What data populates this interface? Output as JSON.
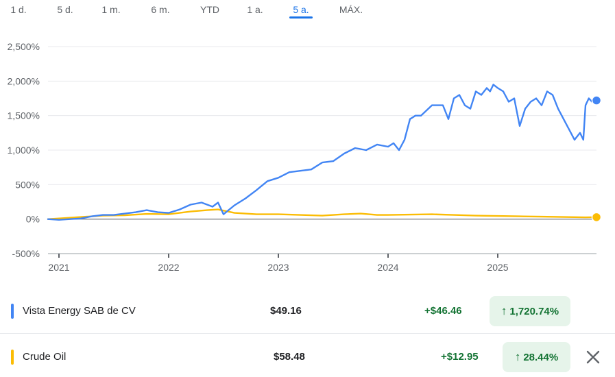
{
  "ranges": [
    "1 d.",
    "5 d.",
    "1 m.",
    "6 m.",
    "YTD",
    "1 a.",
    "5 a.",
    "MÁX."
  ],
  "active_range": "5 a.",
  "legend": [
    {
      "name": "Vista Energy SAB de CV",
      "price": "$49.16",
      "change": "+$46.46",
      "percent": "1,720.74%",
      "color": "#4285f4"
    },
    {
      "name": "Crude Oil",
      "price": "$58.48",
      "change": "+$12.95",
      "percent": "28.44%",
      "color": "#fbbc04"
    }
  ],
  "icons": {
    "up": "arrow-up-icon",
    "close": "close-icon"
  },
  "chart_data": {
    "type": "line",
    "ylabel_format": "percent",
    "y_ticks": [
      "2,500%",
      "2,000%",
      "1,500%",
      "1,000%",
      "500%",
      "0%",
      "-500%"
    ],
    "y_tick_values": [
      2500,
      2000,
      1500,
      1000,
      500,
      0,
      -500
    ],
    "ylim": [
      -500,
      2500
    ],
    "x_ticks": [
      "2021",
      "2022",
      "2023",
      "2024",
      "2025"
    ],
    "x_tick_values": [
      2021.0,
      2022.0,
      2023.0,
      2024.0,
      2025.0
    ],
    "xlim": [
      2020.9,
      2025.9
    ],
    "grid": true,
    "series": [
      {
        "name": "Vista Energy SAB de CV",
        "color": "#4285f4",
        "x": [
          2020.9,
          2021.0,
          2021.1,
          2021.2,
          2021.3,
          2021.4,
          2021.5,
          2021.6,
          2021.7,
          2021.8,
          2021.9,
          2022.0,
          2022.1,
          2022.2,
          2022.3,
          2022.4,
          2022.45,
          2022.5,
          2022.6,
          2022.7,
          2022.8,
          2022.9,
          2023.0,
          2023.1,
          2023.2,
          2023.3,
          2023.4,
          2023.5,
          2023.6,
          2023.7,
          2023.8,
          2023.9,
          2024.0,
          2024.05,
          2024.1,
          2024.15,
          2024.2,
          2024.25,
          2024.3,
          2024.4,
          2024.5,
          2024.55,
          2024.6,
          2024.65,
          2024.7,
          2024.75,
          2024.8,
          2024.85,
          2024.9,
          2024.93,
          2024.96,
          2025.0,
          2025.05,
          2025.1,
          2025.15,
          2025.2,
          2025.25,
          2025.3,
          2025.35,
          2025.4,
          2025.45,
          2025.5,
          2025.55,
          2025.6,
          2025.65,
          2025.7,
          2025.75,
          2025.78,
          2025.8,
          2025.83,
          2025.86,
          2025.9
        ],
        "y": [
          0,
          -10,
          0,
          10,
          40,
          60,
          60,
          80,
          100,
          130,
          100,
          90,
          140,
          210,
          240,
          180,
          240,
          70,
          200,
          300,
          420,
          550,
          600,
          680,
          700,
          720,
          820,
          840,
          950,
          1030,
          1000,
          1080,
          1050,
          1100,
          1000,
          1150,
          1450,
          1500,
          1500,
          1650,
          1650,
          1450,
          1750,
          1800,
          1650,
          1600,
          1850,
          1800,
          1900,
          1850,
          1950,
          1900,
          1850,
          1700,
          1750,
          1350,
          1600,
          1700,
          1750,
          1650,
          1850,
          1800,
          1600,
          1450,
          1300,
          1150,
          1250,
          1150,
          1650,
          1750,
          1700,
          1720
        ]
      },
      {
        "name": "Crude Oil",
        "color": "#fbbc04",
        "x": [
          2020.9,
          2021.0,
          2021.2,
          2021.4,
          2021.6,
          2021.8,
          2022.0,
          2022.2,
          2022.35,
          2022.45,
          2022.6,
          2022.8,
          2023.0,
          2023.2,
          2023.4,
          2023.6,
          2023.75,
          2023.9,
          2024.0,
          2024.2,
          2024.4,
          2024.6,
          2024.8,
          2025.0,
          2025.2,
          2025.4,
          2025.6,
          2025.8,
          2025.9
        ],
        "y": [
          0,
          10,
          30,
          50,
          55,
          75,
          70,
          110,
          130,
          140,
          90,
          70,
          70,
          60,
          50,
          70,
          80,
          60,
          60,
          65,
          70,
          60,
          50,
          45,
          40,
          35,
          30,
          25,
          28
        ]
      }
    ]
  }
}
